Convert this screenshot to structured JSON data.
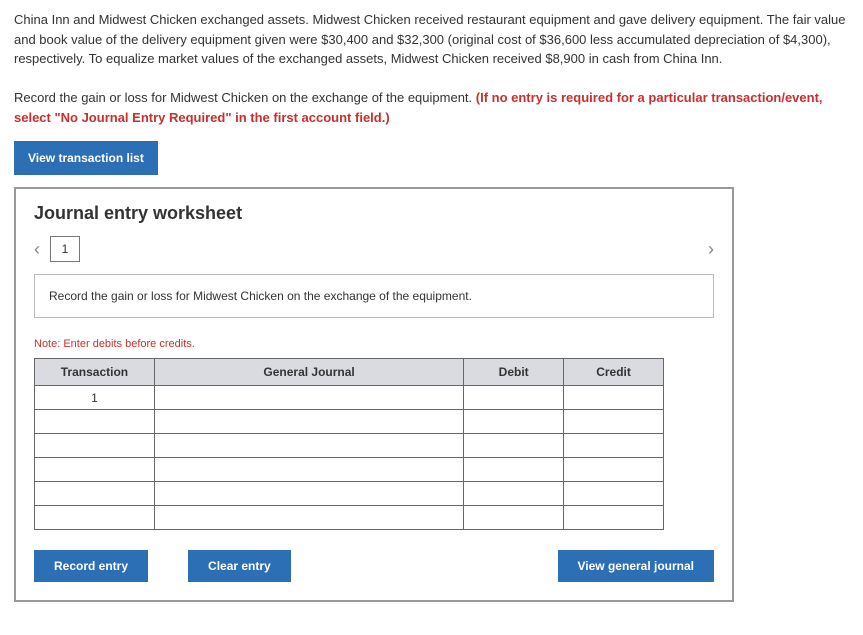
{
  "problem": {
    "paragraph1": "China Inn and Midwest Chicken exchanged assets. Midwest Chicken received restaurant equipment and gave delivery equipment. The fair value and book value of the delivery equipment given were $30,400 and $32,300 (original cost of $36,600 less accumulated depreciation of $4,300), respectively. To equalize market values of the exchanged assets, Midwest Chicken received $8,900 in cash from China Inn.",
    "paragraph2_lead": "Record the gain or loss for Midwest Chicken on the exchange of the equipment. ",
    "paragraph2_red": "(If no entry is required for a particular transaction/event, select \"No Journal Entry Required\" in the first account field.)"
  },
  "buttons": {
    "view_transaction_list": "View transaction list",
    "record_entry": "Record entry",
    "clear_entry": "Clear entry",
    "view_general_journal": "View general journal"
  },
  "worksheet": {
    "title": "Journal entry worksheet",
    "step_number": "1",
    "instruction": "Record the gain or loss for Midwest Chicken on the exchange of the equipment.",
    "note": "Note: Enter debits before credits.",
    "headers": {
      "transaction": "Transaction",
      "general_journal": "General Journal",
      "debit": "Debit",
      "credit": "Credit"
    },
    "first_transaction": "1"
  }
}
